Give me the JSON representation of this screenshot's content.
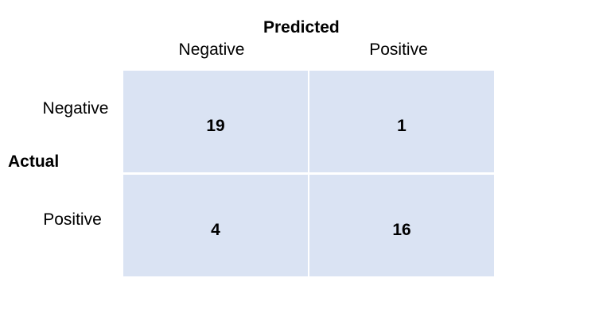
{
  "chart_data": {
    "type": "table",
    "title": "Predicted",
    "column_axis_label": "Predicted",
    "row_axis_label": "Actual",
    "columns": [
      "Negative",
      "Positive"
    ],
    "rows": [
      "Negative",
      "Positive"
    ],
    "values": [
      [
        19,
        1
      ],
      [
        4,
        16
      ]
    ],
    "cell_color": "#dae3f3"
  }
}
